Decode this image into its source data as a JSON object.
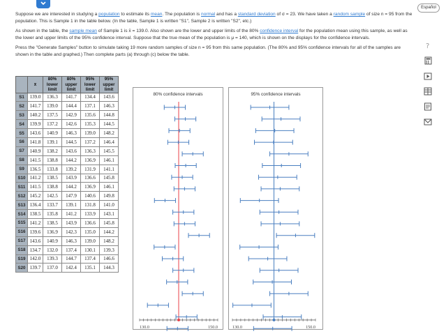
{
  "header": {
    "espanol_label": "Español"
  },
  "intro": {
    "p1_a": "Suppose we are interested in studying a ",
    "p1_link_population": "population",
    "p1_b": " to estimate its ",
    "p1_link_mean": "mean",
    "p1_c": ". The population is ",
    "p1_link_normal": "normal",
    "p1_d": " and has a ",
    "p1_link_sd": "standard deviation",
    "p1_e": " of σ = 23. We have taken a ",
    "p1_link_random": "random sample",
    "p1_f": " of size n = 95 from the population. This is Sample 1 in the table below. (In the table, Sample 1 is written \"S1\", Sample 2 is written \"S2\", etc.)",
    "p2_a": "As shown in the table, the ",
    "p2_link_sample_mean": "sample mean",
    "p2_b": " of Sample 1 is x̄ = 139.0. Also shown are the lower and upper limits of the 80% ",
    "p2_link_ci": "confidence interval",
    "p2_c": " for the population mean using this sample, as well as the lower and upper limits of the 95% confidence interval. Suppose that the true mean of the population is μ = 140, which is shown on the displays for the confidence intervals.",
    "p3": "Press the \"Generate Samples\" button to simulate taking 19 more random samples of size n = 95 from this same population. (The 80% and 95% confidence intervals for all of the samples are shown in the table and graphed.) Then complete parts (a) through (c) below the table."
  },
  "table": {
    "headers": {
      "xbar": "x̄",
      "c80_lower": "80% lower limit",
      "c80_upper": "80% upper limit",
      "c95_lower": "95% lower limit",
      "c95_upper": "95% upper limit"
    },
    "rows": [
      {
        "id": "S1",
        "xbar": "139.0",
        "l80": "136.3",
        "u80": "141.7",
        "l95": "134.4",
        "u95": "143.6"
      },
      {
        "id": "S2",
        "xbar": "141.7",
        "l80": "139.0",
        "u80": "144.4",
        "l95": "137.1",
        "u95": "146.3"
      },
      {
        "id": "S3",
        "xbar": "140.2",
        "l80": "137.5",
        "u80": "142.9",
        "l95": "135.6",
        "u95": "144.8"
      },
      {
        "id": "S4",
        "xbar": "139.9",
        "l80": "137.2",
        "u80": "142.6",
        "l95": "135.3",
        "u95": "144.5"
      },
      {
        "id": "S5",
        "xbar": "143.6",
        "l80": "140.9",
        "u80": "146.3",
        "l95": "139.0",
        "u95": "148.2"
      },
      {
        "id": "S6",
        "xbar": "141.8",
        "l80": "139.1",
        "u80": "144.5",
        "l95": "137.2",
        "u95": "146.4"
      },
      {
        "id": "S7",
        "xbar": "140.9",
        "l80": "138.2",
        "u80": "143.6",
        "l95": "136.3",
        "u95": "145.5"
      },
      {
        "id": "S8",
        "xbar": "141.5",
        "l80": "138.8",
        "u80": "144.2",
        "l95": "136.9",
        "u95": "146.1"
      },
      {
        "id": "S9",
        "xbar": "136.5",
        "l80": "133.8",
        "u80": "139.2",
        "l95": "131.9",
        "u95": "141.1"
      },
      {
        "id": "S10",
        "xbar": "141.2",
        "l80": "138.5",
        "u80": "143.9",
        "l95": "136.6",
        "u95": "145.8"
      },
      {
        "id": "S11",
        "xbar": "141.5",
        "l80": "138.8",
        "u80": "144.2",
        "l95": "136.9",
        "u95": "146.1"
      },
      {
        "id": "S12",
        "xbar": "145.2",
        "l80": "142.5",
        "u80": "147.9",
        "l95": "140.6",
        "u95": "149.8"
      },
      {
        "id": "S13",
        "xbar": "136.4",
        "l80": "133.7",
        "u80": "139.1",
        "l95": "131.8",
        "u95": "141.0"
      },
      {
        "id": "S14",
        "xbar": "138.5",
        "l80": "135.8",
        "u80": "141.2",
        "l95": "133.9",
        "u95": "143.1"
      },
      {
        "id": "S15",
        "xbar": "141.2",
        "l80": "138.5",
        "u80": "143.9",
        "l95": "136.6",
        "u95": "145.8"
      },
      {
        "id": "S16",
        "xbar": "139.6",
        "l80": "136.9",
        "u80": "142.3",
        "l95": "135.0",
        "u95": "144.2"
      },
      {
        "id": "S17",
        "xbar": "143.6",
        "l80": "140.9",
        "u80": "146.3",
        "l95": "139.0",
        "u95": "148.2"
      },
      {
        "id": "S18",
        "xbar": "134.7",
        "l80": "132.0",
        "u80": "137.4",
        "l95": "130.1",
        "u95": "139.3"
      },
      {
        "id": "S19",
        "xbar": "142.0",
        "l80": "139.3",
        "u80": "144.7",
        "l95": "137.4",
        "u95": "146.6"
      },
      {
        "id": "S20",
        "xbar": "139.7",
        "l80": "137.0",
        "u80": "142.4",
        "l95": "135.1",
        "u95": "144.3"
      }
    ]
  },
  "chart_data": [
    {
      "type": "interval",
      "title": "80% confidence intervals",
      "xlim": [
        130.0,
        150.0
      ],
      "tick_labels": [
        "130.0",
        "150.0"
      ],
      "true_mean": 140,
      "true_mean_line_color": "#e8424a",
      "intervals": [
        [
          136.3,
          141.7
        ],
        [
          139.0,
          144.4
        ],
        [
          137.5,
          142.9
        ],
        [
          137.2,
          142.6
        ],
        [
          140.9,
          146.3
        ],
        [
          139.1,
          144.5
        ],
        [
          138.2,
          143.6
        ],
        [
          138.8,
          144.2
        ],
        [
          133.8,
          139.2
        ],
        [
          138.5,
          143.9
        ],
        [
          138.8,
          144.2
        ],
        [
          142.5,
          147.9
        ],
        [
          133.7,
          139.1
        ],
        [
          135.8,
          141.2
        ],
        [
          138.5,
          143.9
        ],
        [
          136.9,
          142.3
        ],
        [
          140.9,
          146.3
        ],
        [
          132.0,
          137.4
        ],
        [
          139.3,
          144.7
        ],
        [
          137.0,
          142.4
        ]
      ]
    },
    {
      "type": "interval",
      "title": "95% confidence intervals",
      "xlim": [
        130.0,
        150.0
      ],
      "tick_labels": [
        "130.0",
        "150.0"
      ],
      "true_mean": 140,
      "true_mean_line_color": "#4a7fc0",
      "intervals": [
        [
          134.4,
          143.6
        ],
        [
          137.1,
          146.3
        ],
        [
          135.6,
          144.8
        ],
        [
          135.3,
          144.5
        ],
        [
          139.0,
          148.2
        ],
        [
          137.2,
          146.4
        ],
        [
          136.3,
          145.5
        ],
        [
          136.9,
          146.1
        ],
        [
          131.9,
          141.1
        ],
        [
          136.6,
          145.8
        ],
        [
          136.9,
          146.1
        ],
        [
          140.6,
          149.8
        ],
        [
          131.8,
          141.0
        ],
        [
          133.9,
          143.1
        ],
        [
          136.6,
          145.8
        ],
        [
          135.0,
          144.2
        ],
        [
          139.0,
          148.2
        ],
        [
          130.1,
          139.3
        ],
        [
          137.4,
          146.6
        ],
        [
          135.1,
          144.3
        ]
      ]
    }
  ]
}
